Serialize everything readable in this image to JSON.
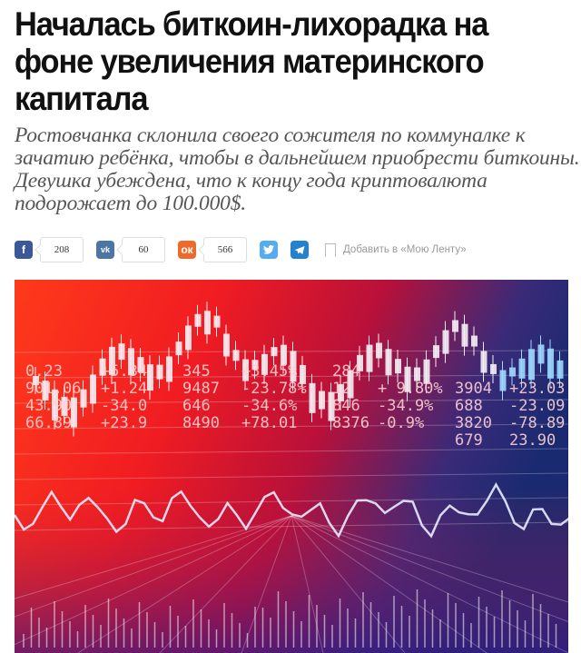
{
  "article": {
    "headline": "Началась биткоин-лихорадка на фоне увеличения материнского капитала",
    "lead": "Ростовчанка склонила своего сожителя по коммуналке к зачатию ребёнка, чтобы в дальнейшем приобрести биткоины. Девушка убеждена, что к концу года криптовалюта подорожает до 100.000$."
  },
  "share": {
    "facebook": {
      "icon": "facebook-icon",
      "count": "208",
      "color": "#3b5998"
    },
    "vk": {
      "icon": "vk-icon",
      "count": "60",
      "color": "#4c75a3"
    },
    "ok": {
      "icon": "odnoklassniki-icon",
      "count": "566",
      "color": "#ee8208"
    },
    "twitter": {
      "icon": "twitter-icon",
      "color": "#55acee"
    },
    "telegram": {
      "icon": "telegram-icon",
      "color": "#2481cc"
    },
    "add_to_feed": "Добавить в «Мою Ленту»"
  },
  "image": {
    "ticker_rows": [
      [
        "0.23",
        "+5.34",
        "345",
        "+3.45%",
        "284",
        "",
        "",
        ""
      ],
      [
        "901.06",
        "+1.24",
        "9487",
        "-23.78%",
        "12",
        "+ 9.80%",
        "3904",
        "+23.03"
      ],
      [
        "43.90",
        "-34.0",
        "646",
        "-34.6%",
        "846",
        "-34.9%",
        "688",
        "-23.09"
      ],
      [
        "66.89",
        "+23.9",
        "8490",
        "+78.01",
        "8376",
        "-0.9%",
        "3820",
        "-78.89"
      ],
      [
        "",
        "",
        "",
        "",
        "",
        "",
        "679",
        "23.90"
      ]
    ]
  }
}
